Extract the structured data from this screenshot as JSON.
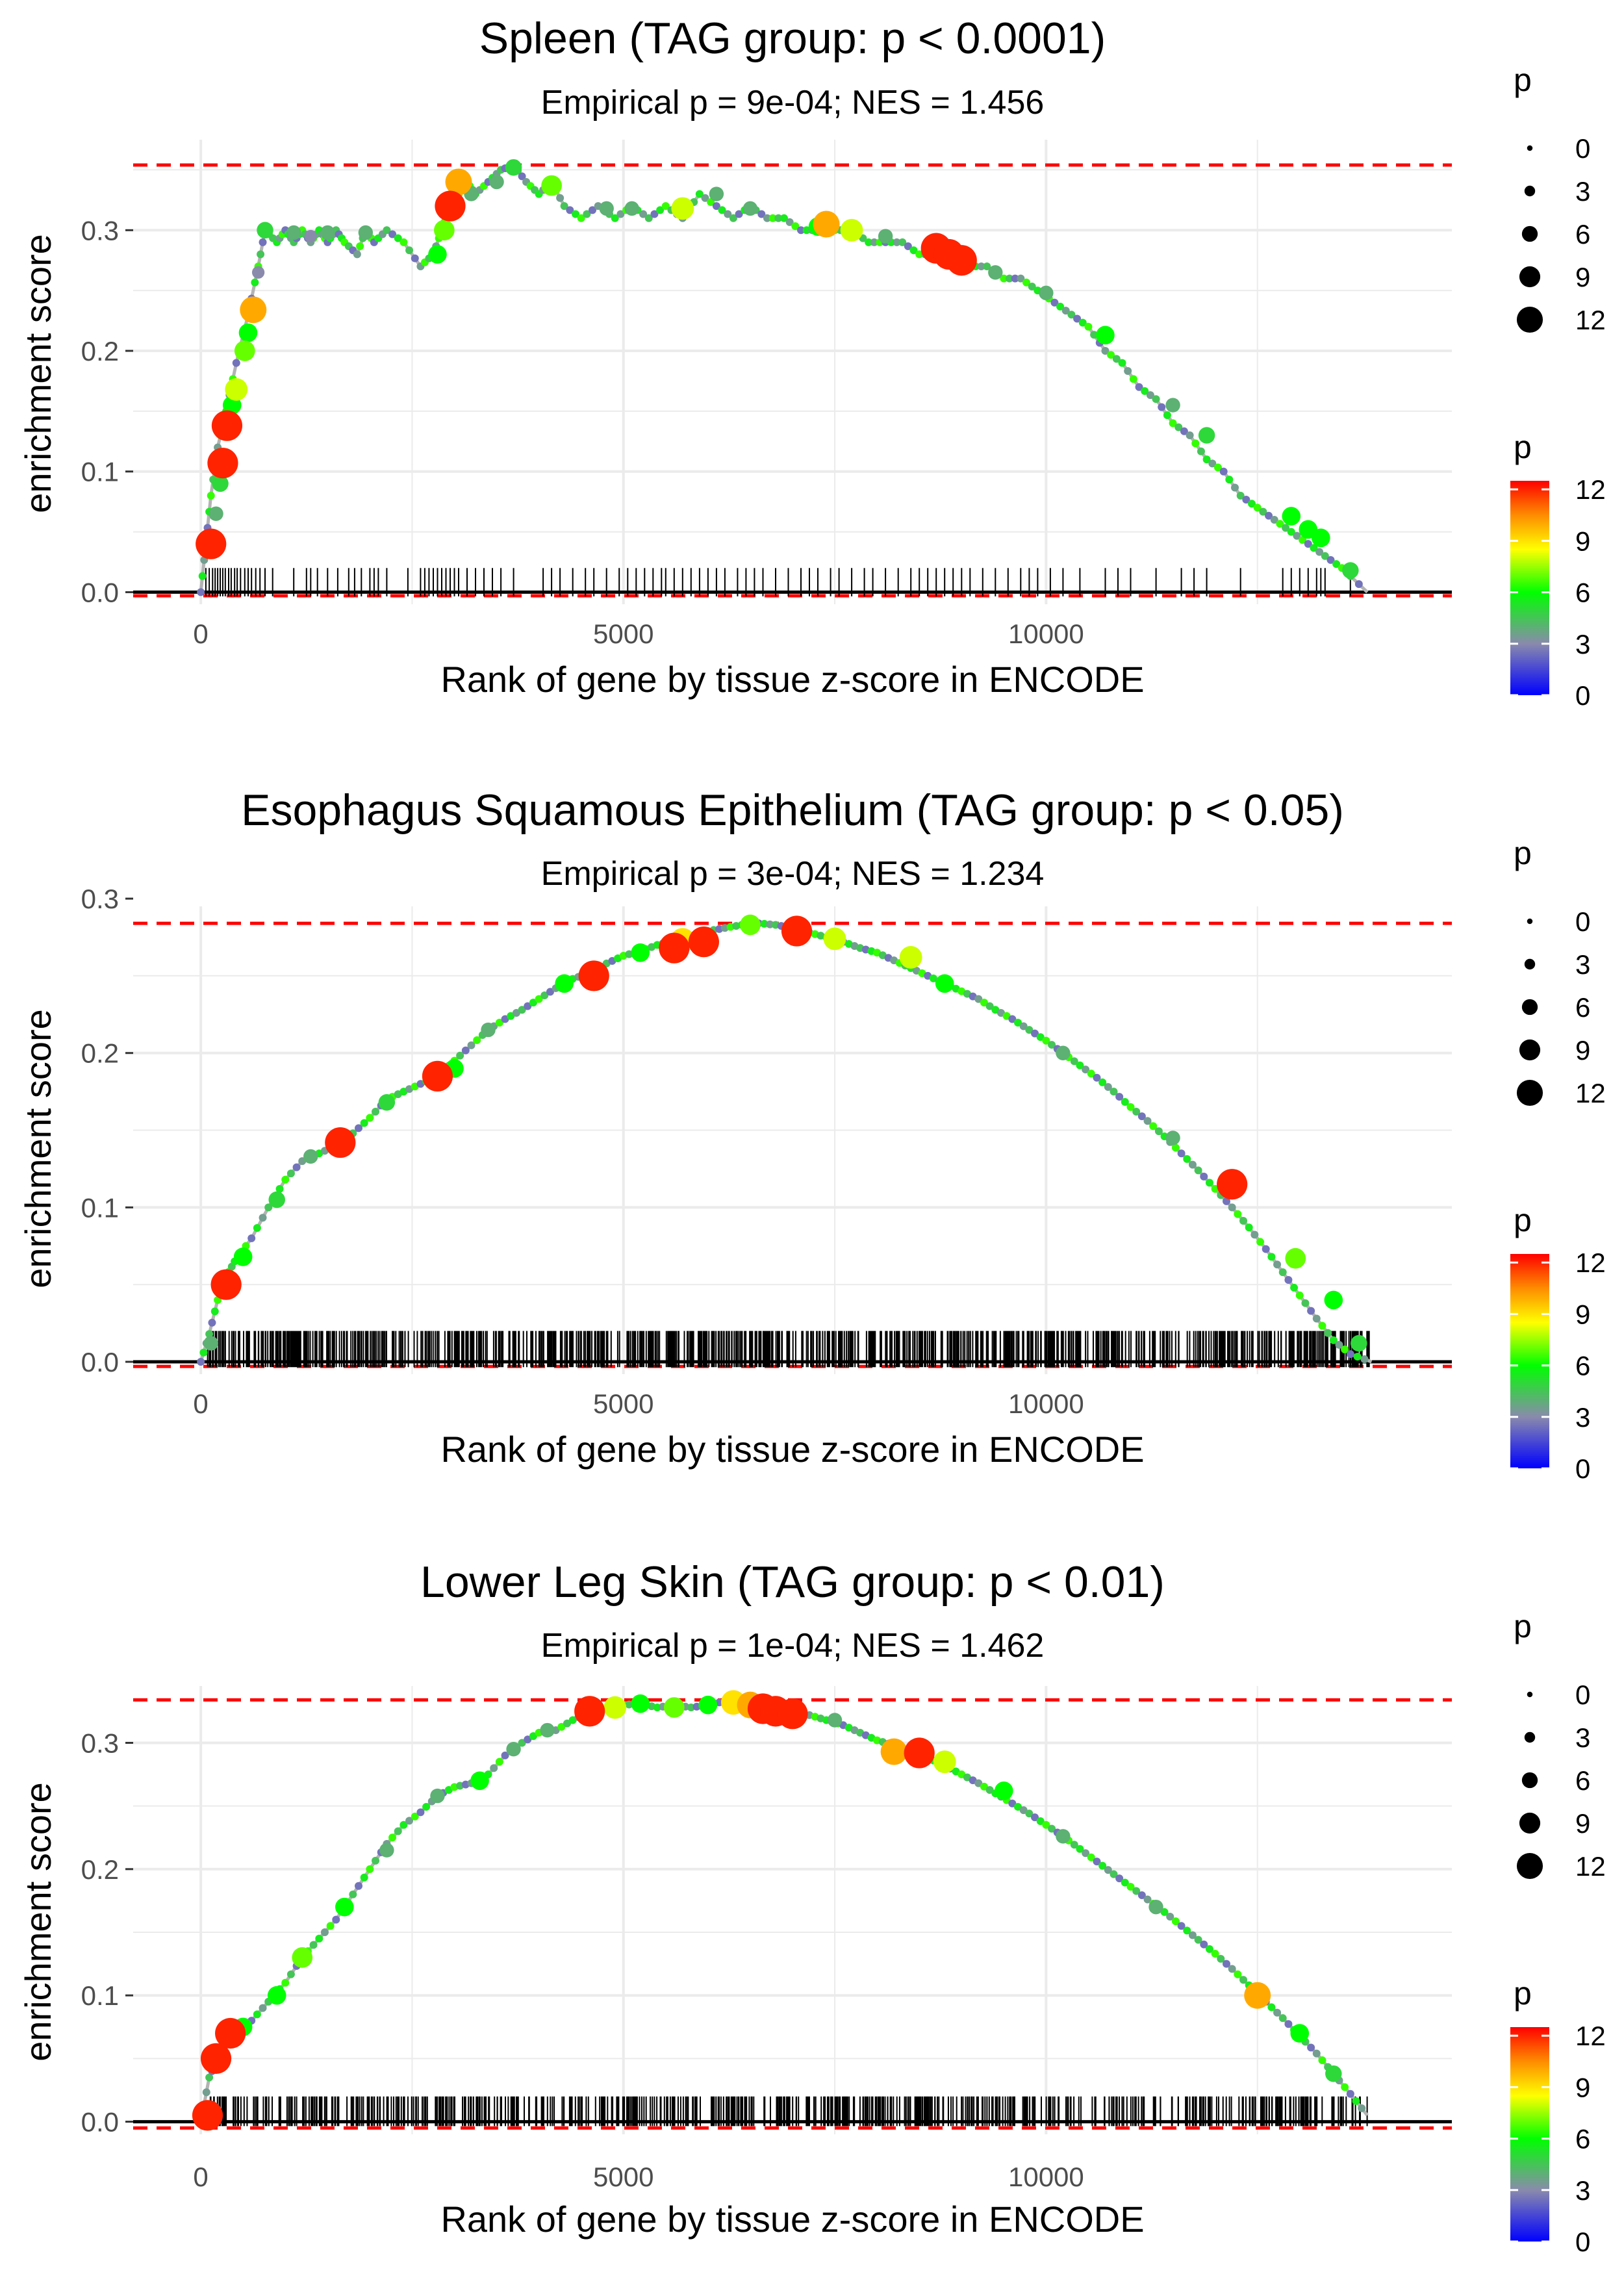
{
  "colors": {
    "grid": "#ebebeb",
    "hline": "#ff0000",
    "axis": "#000000",
    "curve": "#b3b3b3",
    "text": "#000000",
    "tick_text": "#4d4d4d",
    "gradient": [
      "#0000ff",
      "#8a8aad",
      "#00ff00",
      "#ffff00",
      "#ff8c00",
      "#ff0000"
    ]
  },
  "shared": {
    "xlabel": "Rank of gene by tissue z-score in ENCODE",
    "ylabel": "enrichment score",
    "xlim": [
      -800,
      14800
    ],
    "xticks": [
      0,
      5000,
      10000
    ],
    "xtick_labels": [
      "0",
      "5000",
      "10000"
    ],
    "size_legend": {
      "title": "p",
      "values": [
        0,
        3,
        6,
        9,
        12
      ],
      "labels": [
        "0",
        "3",
        "6",
        "9",
        "12"
      ]
    },
    "color_legend": {
      "title": "p",
      "values": [
        0,
        3,
        6,
        9,
        12
      ],
      "labels": [
        "0",
        "3",
        "6",
        "9",
        "12"
      ],
      "range": [
        0,
        12.5
      ]
    }
  },
  "chart_data": [
    {
      "type": "line",
      "title": "Spleen (TAG group: p < 0.0001)",
      "subtitle": "Empirical p = 9e-04; NES = 1.456",
      "xlabel": "Rank of gene by tissue z-score in ENCODE",
      "ylabel": "enrichment score",
      "ylim": [
        -0.01,
        0.375
      ],
      "yticks": [
        0.0,
        0.1,
        0.2,
        0.3
      ],
      "ytick_labels": [
        "0.0",
        "0.1",
        "0.2",
        "0.3"
      ],
      "max_es": 0.354,
      "min_es": -0.003,
      "x_end": 13800,
      "curve_x": [
        0,
        60,
        120,
        200,
        300,
        420,
        560,
        680,
        760,
        900,
        1000,
        1100,
        1200,
        1300,
        1400,
        1500,
        1600,
        1700,
        1850,
        1950,
        2050,
        2200,
        2400,
        2600,
        2750,
        2850,
        2950,
        3050,
        3150,
        3250,
        3400,
        3550,
        3700,
        3850,
        4000,
        4150,
        4300,
        4500,
        4700,
        4900,
        5100,
        5300,
        5500,
        5700,
        5900,
        6100,
        6300,
        6500,
        6700,
        6900,
        7100,
        7300,
        7500,
        7700,
        7900,
        8100,
        8300,
        8500,
        8700,
        8900,
        9100,
        9300,
        9500,
        9700,
        9900,
        10100,
        10300,
        10500,
        10700,
        10900,
        11100,
        11300,
        11500,
        11700,
        11900,
        12100,
        12300,
        12500,
        12700,
        12900,
        13100,
        13300,
        13500,
        13800
      ],
      "curve_y": [
        0.0,
        0.04,
        0.08,
        0.12,
        0.15,
        0.19,
        0.23,
        0.27,
        0.3,
        0.29,
        0.3,
        0.29,
        0.3,
        0.29,
        0.3,
        0.29,
        0.3,
        0.29,
        0.28,
        0.3,
        0.29,
        0.3,
        0.29,
        0.27,
        0.28,
        0.3,
        0.32,
        0.33,
        0.34,
        0.33,
        0.34,
        0.35,
        0.354,
        0.34,
        0.33,
        0.34,
        0.32,
        0.31,
        0.32,
        0.31,
        0.32,
        0.31,
        0.32,
        0.31,
        0.33,
        0.32,
        0.31,
        0.32,
        0.31,
        0.31,
        0.3,
        0.3,
        0.3,
        0.3,
        0.29,
        0.29,
        0.29,
        0.28,
        0.28,
        0.28,
        0.27,
        0.27,
        0.26,
        0.26,
        0.25,
        0.24,
        0.23,
        0.22,
        0.2,
        0.19,
        0.17,
        0.16,
        0.14,
        0.13,
        0.11,
        0.1,
        0.08,
        0.07,
        0.06,
        0.05,
        0.04,
        0.03,
        0.02,
        0.0
      ],
      "points": [
        {
          "x": 120,
          "y": 0.04,
          "p": 12
        },
        {
          "x": 180,
          "y": 0.065,
          "p": 4
        },
        {
          "x": 230,
          "y": 0.09,
          "p": 5
        },
        {
          "x": 260,
          "y": 0.107,
          "p": 12
        },
        {
          "x": 310,
          "y": 0.138,
          "p": 12
        },
        {
          "x": 370,
          "y": 0.155,
          "p": 6
        },
        {
          "x": 420,
          "y": 0.168,
          "p": 8
        },
        {
          "x": 520,
          "y": 0.2,
          "p": 7
        },
        {
          "x": 560,
          "y": 0.215,
          "p": 6
        },
        {
          "x": 620,
          "y": 0.234,
          "p": 10
        },
        {
          "x": 680,
          "y": 0.265,
          "p": 3
        },
        {
          "x": 760,
          "y": 0.3,
          "p": 5
        },
        {
          "x": 1100,
          "y": 0.298,
          "p": 4
        },
        {
          "x": 1300,
          "y": 0.295,
          "p": 3
        },
        {
          "x": 1500,
          "y": 0.298,
          "p": 4
        },
        {
          "x": 1950,
          "y": 0.298,
          "p": 4
        },
        {
          "x": 2800,
          "y": 0.28,
          "p": 6
        },
        {
          "x": 2880,
          "y": 0.3,
          "p": 7
        },
        {
          "x": 2950,
          "y": 0.32,
          "p": 12
        },
        {
          "x": 3050,
          "y": 0.34,
          "p": 10
        },
        {
          "x": 3200,
          "y": 0.33,
          "p": 4
        },
        {
          "x": 3500,
          "y": 0.34,
          "p": 4
        },
        {
          "x": 3700,
          "y": 0.352,
          "p": 5
        },
        {
          "x": 4150,
          "y": 0.337,
          "p": 7
        },
        {
          "x": 4800,
          "y": 0.318,
          "p": 4
        },
        {
          "x": 5100,
          "y": 0.318,
          "p": 4
        },
        {
          "x": 5700,
          "y": 0.318,
          "p": 8
        },
        {
          "x": 6100,
          "y": 0.33,
          "p": 4
        },
        {
          "x": 6500,
          "y": 0.318,
          "p": 4
        },
        {
          "x": 7300,
          "y": 0.303,
          "p": 6
        },
        {
          "x": 7400,
          "y": 0.305,
          "p": 10
        },
        {
          "x": 7700,
          "y": 0.3,
          "p": 8
        },
        {
          "x": 8100,
          "y": 0.295,
          "p": 4
        },
        {
          "x": 8700,
          "y": 0.285,
          "p": 12
        },
        {
          "x": 8850,
          "y": 0.28,
          "p": 12
        },
        {
          "x": 9000,
          "y": 0.275,
          "p": 12
        },
        {
          "x": 9400,
          "y": 0.265,
          "p": 4
        },
        {
          "x": 10000,
          "y": 0.248,
          "p": 4
        },
        {
          "x": 10700,
          "y": 0.213,
          "p": 6
        },
        {
          "x": 11500,
          "y": 0.155,
          "p": 4
        },
        {
          "x": 11900,
          "y": 0.13,
          "p": 5
        },
        {
          "x": 12900,
          "y": 0.063,
          "p": 6
        },
        {
          "x": 13100,
          "y": 0.052,
          "p": 6
        },
        {
          "x": 13250,
          "y": 0.045,
          "p": 6
        },
        {
          "x": 13600,
          "y": 0.018,
          "p": 5
        }
      ],
      "rug": [
        60,
        100,
        140,
        170,
        200,
        230,
        260,
        290,
        330,
        360,
        400,
        430,
        470,
        520,
        560,
        600,
        650,
        700,
        760,
        850,
        1100,
        1250,
        1300,
        1380,
        1500,
        1620,
        1750,
        1820,
        1900,
        2000,
        2050,
        2100,
        2200,
        2450,
        2600,
        2650,
        2700,
        2750,
        2800,
        2850,
        2900,
        2950,
        3000,
        3050,
        3150,
        3250,
        3350,
        3450,
        3550,
        3700,
        4050,
        4150,
        4250,
        4400,
        4550,
        4650,
        4800,
        4950,
        5050,
        5150,
        5250,
        5350,
        5450,
        5500,
        5600,
        5700,
        5800,
        5900,
        6000,
        6100,
        6200,
        6350,
        6450,
        6550,
        6650,
        6800,
        6950,
        7100,
        7200,
        7300,
        7450,
        7550,
        7700,
        7850,
        7950,
        8100,
        8250,
        8400,
        8500,
        8600,
        8700,
        8800,
        8900,
        9000,
        9100,
        9250,
        9400,
        9550,
        9700,
        9800,
        9900,
        10050,
        10200,
        10400,
        10700,
        10850,
        11000,
        11300,
        11600,
        11750,
        11900,
        12300,
        12800,
        12900,
        13000,
        13100,
        13200,
        13250,
        13300,
        13600
      ]
    },
    {
      "type": "line",
      "title": "Esophagus Squamous Epithelium (TAG group: p < 0.05)",
      "subtitle": "Empirical p = 3e-04; NES = 1.234",
      "xlabel": "Rank of gene by tissue z-score in ENCODE",
      "ylabel": "enrichment score",
      "ylim": [
        -0.008,
        0.295
      ],
      "yticks": [
        0.0,
        0.1,
        0.2,
        0.3
      ],
      "ytick_labels": [
        "0.0",
        "0.1",
        "0.2",
        "0.3"
      ],
      "max_es": 0.284,
      "min_es": -0.003,
      "x_end": 13850,
      "curve_x": [
        0,
        100,
        200,
        300,
        400,
        600,
        800,
        1000,
        1200,
        1400,
        1600,
        1800,
        2000,
        2200,
        2400,
        2600,
        2800,
        3000,
        3200,
        3400,
        3600,
        3800,
        4000,
        4200,
        4400,
        4600,
        4800,
        5000,
        5200,
        5400,
        5600,
        5800,
        6000,
        6200,
        6400,
        6600,
        6800,
        7000,
        7200,
        7400,
        7600,
        7800,
        8000,
        8200,
        8400,
        8600,
        8800,
        9000,
        9200,
        9400,
        9600,
        9800,
        10000,
        10200,
        10400,
        10600,
        10800,
        11000,
        11200,
        11400,
        11600,
        11800,
        12000,
        12200,
        12400,
        12600,
        12800,
        13000,
        13200,
        13400,
        13600,
        13850
      ],
      "curve_y": [
        0.0,
        0.018,
        0.04,
        0.055,
        0.065,
        0.08,
        0.1,
        0.118,
        0.13,
        0.135,
        0.14,
        0.148,
        0.158,
        0.17,
        0.175,
        0.18,
        0.185,
        0.195,
        0.205,
        0.215,
        0.222,
        0.228,
        0.235,
        0.242,
        0.248,
        0.252,
        0.258,
        0.263,
        0.266,
        0.27,
        0.273,
        0.276,
        0.279,
        0.281,
        0.283,
        0.284,
        0.283,
        0.281,
        0.278,
        0.275,
        0.272,
        0.268,
        0.265,
        0.26,
        0.255,
        0.25,
        0.245,
        0.24,
        0.235,
        0.228,
        0.222,
        0.215,
        0.208,
        0.2,
        0.192,
        0.184,
        0.175,
        0.165,
        0.156,
        0.146,
        0.135,
        0.124,
        0.112,
        0.1,
        0.087,
        0.073,
        0.058,
        0.043,
        0.028,
        0.014,
        0.005,
        0.0
      ],
      "points": [
        {
          "x": 120,
          "y": 0.012,
          "p": 4
        },
        {
          "x": 300,
          "y": 0.05,
          "p": 12
        },
        {
          "x": 500,
          "y": 0.068,
          "p": 6
        },
        {
          "x": 900,
          "y": 0.105,
          "p": 5
        },
        {
          "x": 1300,
          "y": 0.133,
          "p": 4
        },
        {
          "x": 1650,
          "y": 0.142,
          "p": 12
        },
        {
          "x": 2200,
          "y": 0.168,
          "p": 5
        },
        {
          "x": 2800,
          "y": 0.185,
          "p": 12
        },
        {
          "x": 3000,
          "y": 0.19,
          "p": 6
        },
        {
          "x": 3400,
          "y": 0.215,
          "p": 4
        },
        {
          "x": 4300,
          "y": 0.245,
          "p": 6
        },
        {
          "x": 4650,
          "y": 0.25,
          "p": 12
        },
        {
          "x": 5200,
          "y": 0.265,
          "p": 6
        },
        {
          "x": 5600,
          "y": 0.268,
          "p": 12
        },
        {
          "x": 5700,
          "y": 0.273,
          "p": 9
        },
        {
          "x": 5950,
          "y": 0.272,
          "p": 12
        },
        {
          "x": 6500,
          "y": 0.283,
          "p": 7
        },
        {
          "x": 7050,
          "y": 0.279,
          "p": 12
        },
        {
          "x": 7500,
          "y": 0.274,
          "p": 8
        },
        {
          "x": 8400,
          "y": 0.262,
          "p": 8
        },
        {
          "x": 8800,
          "y": 0.245,
          "p": 6
        },
        {
          "x": 10200,
          "y": 0.2,
          "p": 4
        },
        {
          "x": 11500,
          "y": 0.145,
          "p": 4
        },
        {
          "x": 12200,
          "y": 0.115,
          "p": 12
        },
        {
          "x": 12950,
          "y": 0.067,
          "p": 7
        },
        {
          "x": 13400,
          "y": 0.04,
          "p": 6
        },
        {
          "x": 13700,
          "y": 0.012,
          "p": 5
        }
      ],
      "rug_range": [
        80,
        13850
      ],
      "rug_count": 900
    },
    {
      "type": "line",
      "title": "Lower Leg Skin (TAG group: p < 0.01)",
      "subtitle": "Empirical p = 1e-04; NES = 1.462",
      "xlabel": "Rank of gene by tissue z-score in ENCODE",
      "ylabel": "enrichment score",
      "ylim": [
        -0.01,
        0.345
      ],
      "yticks": [
        0.0,
        0.1,
        0.2,
        0.3
      ],
      "ytick_labels": [
        "0.0",
        "0.1",
        "0.2",
        "0.3"
      ],
      "max_es": 0.334,
      "min_es": -0.005,
      "x_end": 13800,
      "curve_x": [
        0,
        100,
        200,
        300,
        400,
        600,
        800,
        1000,
        1200,
        1400,
        1600,
        1800,
        2000,
        2200,
        2400,
        2600,
        2800,
        3000,
        3200,
        3400,
        3600,
        3800,
        4000,
        4200,
        4400,
        4600,
        4800,
        5000,
        5200,
        5400,
        5600,
        5800,
        6000,
        6200,
        6400,
        6600,
        6800,
        7000,
        7200,
        7400,
        7600,
        7800,
        8000,
        8200,
        8400,
        8600,
        8800,
        9000,
        9200,
        9400,
        9600,
        9800,
        10000,
        10200,
        10400,
        10600,
        10800,
        11000,
        11200,
        11400,
        11600,
        11800,
        12000,
        12200,
        12400,
        12600,
        12800,
        13000,
        13200,
        13400,
        13600,
        13800
      ],
      "curve_y": [
        0.0,
        0.035,
        0.05,
        0.065,
        0.072,
        0.08,
        0.095,
        0.11,
        0.13,
        0.145,
        0.16,
        0.18,
        0.2,
        0.22,
        0.235,
        0.245,
        0.258,
        0.265,
        0.268,
        0.275,
        0.29,
        0.3,
        0.308,
        0.31,
        0.318,
        0.325,
        0.327,
        0.33,
        0.331,
        0.328,
        0.33,
        0.328,
        0.33,
        0.333,
        0.334,
        0.33,
        0.328,
        0.325,
        0.322,
        0.318,
        0.314,
        0.308,
        0.302,
        0.298,
        0.293,
        0.288,
        0.282,
        0.275,
        0.268,
        0.26,
        0.252,
        0.244,
        0.235,
        0.226,
        0.216,
        0.206,
        0.196,
        0.186,
        0.176,
        0.166,
        0.155,
        0.144,
        0.133,
        0.121,
        0.108,
        0.095,
        0.082,
        0.068,
        0.054,
        0.038,
        0.022,
        0.005
      ],
      "points": [
        {
          "x": 80,
          "y": 0.005,
          "p": 12
        },
        {
          "x": 180,
          "y": 0.05,
          "p": 12
        },
        {
          "x": 350,
          "y": 0.07,
          "p": 12
        },
        {
          "x": 500,
          "y": 0.075,
          "p": 6
        },
        {
          "x": 900,
          "y": 0.1,
          "p": 6
        },
        {
          "x": 1200,
          "y": 0.13,
          "p": 7
        },
        {
          "x": 1700,
          "y": 0.17,
          "p": 6
        },
        {
          "x": 2200,
          "y": 0.215,
          "p": 4
        },
        {
          "x": 2800,
          "y": 0.258,
          "p": 4
        },
        {
          "x": 3300,
          "y": 0.27,
          "p": 6
        },
        {
          "x": 3700,
          "y": 0.295,
          "p": 4
        },
        {
          "x": 4100,
          "y": 0.31,
          "p": 4
        },
        {
          "x": 4600,
          "y": 0.325,
          "p": 12
        },
        {
          "x": 4900,
          "y": 0.328,
          "p": 8
        },
        {
          "x": 5200,
          "y": 0.331,
          "p": 6
        },
        {
          "x": 5600,
          "y": 0.328,
          "p": 7
        },
        {
          "x": 6000,
          "y": 0.33,
          "p": 6
        },
        {
          "x": 6300,
          "y": 0.332,
          "p": 9
        },
        {
          "x": 6500,
          "y": 0.33,
          "p": 10
        },
        {
          "x": 6650,
          "y": 0.327,
          "p": 12
        },
        {
          "x": 6800,
          "y": 0.325,
          "p": 12
        },
        {
          "x": 7000,
          "y": 0.323,
          "p": 12
        },
        {
          "x": 7500,
          "y": 0.318,
          "p": 4
        },
        {
          "x": 8200,
          "y": 0.293,
          "p": 10
        },
        {
          "x": 8500,
          "y": 0.292,
          "p": 12
        },
        {
          "x": 8800,
          "y": 0.285,
          "p": 8
        },
        {
          "x": 9500,
          "y": 0.262,
          "p": 6
        },
        {
          "x": 10200,
          "y": 0.226,
          "p": 4
        },
        {
          "x": 11300,
          "y": 0.17,
          "p": 4
        },
        {
          "x": 12500,
          "y": 0.1,
          "p": 10
        },
        {
          "x": 13000,
          "y": 0.07,
          "p": 6
        },
        {
          "x": 13400,
          "y": 0.038,
          "p": 5
        }
      ],
      "rug_range": [
        80,
        13800
      ],
      "rug_count": 650
    }
  ]
}
